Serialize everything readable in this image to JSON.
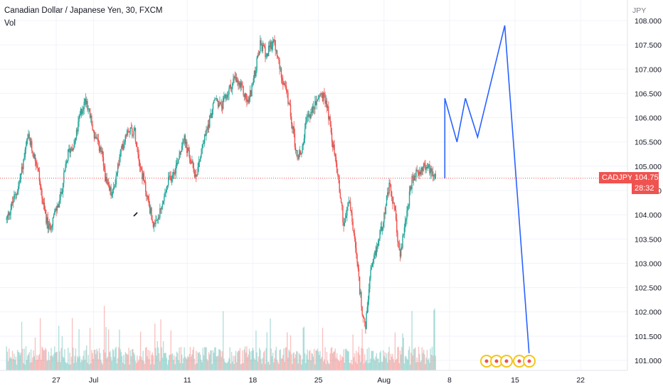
{
  "header": {
    "title": "Canadian Dollar / Japanese Yen, 30, FXCM",
    "volume_label": "Vol"
  },
  "price_axis": {
    "currency": "JPY"
  },
  "last_price": {
    "symbol": "CADJPY",
    "price": "104.755",
    "countdown": "28:32"
  },
  "colors": {
    "up": "#26a69a",
    "down": "#ef5350",
    "projection": "#2962ff",
    "price_line": "#ef5350",
    "event_marker": "#f5c518"
  },
  "chart_data": {
    "type": "candlestick",
    "title": "Canadian Dollar / Japanese Yen, 30, FXCM",
    "ylabel": "JPY",
    "ylim": [
      100.85,
      108.3
    ],
    "ytick_labels": [
      "101.000",
      "101.500",
      "102.000",
      "102.500",
      "103.000",
      "103.500",
      "104.000",
      "104.500",
      "105.000",
      "105.500",
      "106.000",
      "106.500",
      "107.000",
      "107.500",
      "108.000"
    ],
    "yticks": [
      101.0,
      101.5,
      102.0,
      102.5,
      103.0,
      103.5,
      104.0,
      104.5,
      105.0,
      105.5,
      106.0,
      106.5,
      107.0,
      107.5,
      108.0
    ],
    "x_labels": [
      {
        "text": "27",
        "day": 27
      },
      {
        "text": "Jul",
        "day": 31
      },
      {
        "text": "11",
        "day": 41
      },
      {
        "text": "18",
        "day": 48
      },
      {
        "text": "25",
        "day": 55
      },
      {
        "text": "Aug",
        "day": 62
      },
      {
        "text": "8",
        "day": 69
      },
      {
        "text": "15",
        "day": 76
      },
      {
        "text": "22",
        "day": 83
      }
    ],
    "price_path": [
      [
        21.7,
        103.9
      ],
      [
        23.0,
        104.6
      ],
      [
        24.0,
        105.6
      ],
      [
        25.0,
        105.0
      ],
      [
        25.6,
        104.2
      ],
      [
        26.2,
        103.7
      ],
      [
        27.4,
        104.3
      ],
      [
        28.3,
        105.3
      ],
      [
        29.0,
        105.5
      ],
      [
        29.6,
        106.1
      ],
      [
        30.2,
        106.4
      ],
      [
        31.1,
        105.6
      ],
      [
        31.8,
        105.3
      ],
      [
        32.4,
        104.6
      ],
      [
        33.0,
        104.4
      ],
      [
        33.8,
        105.2
      ],
      [
        34.6,
        105.8
      ],
      [
        35.4,
        105.7
      ],
      [
        36.0,
        105.0
      ],
      [
        36.8,
        104.3
      ],
      [
        37.5,
        103.7
      ],
      [
        38.2,
        104.1
      ],
      [
        39.0,
        104.7
      ],
      [
        39.8,
        105.0
      ],
      [
        40.6,
        105.6
      ],
      [
        41.2,
        105.2
      ],
      [
        41.9,
        104.8
      ],
      [
        42.6,
        105.4
      ],
      [
        43.3,
        105.9
      ],
      [
        44.0,
        106.4
      ],
      [
        44.6,
        106.2
      ],
      [
        45.3,
        106.5
      ],
      [
        46.0,
        106.8
      ],
      [
        46.8,
        106.6
      ],
      [
        47.5,
        106.3
      ],
      [
        48.2,
        106.9
      ],
      [
        48.8,
        107.5
      ],
      [
        49.5,
        107.3
      ],
      [
        50.2,
        107.6
      ],
      [
        50.9,
        107.0
      ],
      [
        51.5,
        106.6
      ],
      [
        52.1,
        106.0
      ],
      [
        52.7,
        105.2
      ],
      [
        53.2,
        105.3
      ],
      [
        53.8,
        106.0
      ],
      [
        54.5,
        106.2
      ],
      [
        55.2,
        106.5
      ],
      [
        55.9,
        106.3
      ],
      [
        56.5,
        105.5
      ],
      [
        57.1,
        104.8
      ],
      [
        57.7,
        103.8
      ],
      [
        58.3,
        104.3
      ],
      [
        58.9,
        103.4
      ],
      [
        59.5,
        102.3
      ],
      [
        60.0,
        101.6
      ],
      [
        60.5,
        102.7
      ],
      [
        61.2,
        103.3
      ],
      [
        61.9,
        103.9
      ],
      [
        62.6,
        104.6
      ],
      [
        63.2,
        104.0
      ],
      [
        63.7,
        103.1
      ],
      [
        64.3,
        103.9
      ],
      [
        65.0,
        104.7
      ],
      [
        65.7,
        104.9
      ],
      [
        66.4,
        105.0
      ],
      [
        67.2,
        104.9
      ],
      [
        67.6,
        104.8
      ]
    ],
    "volume_hint": {
      "ylim": [
        0,
        1
      ]
    },
    "projection": [
      [
        68.5,
        104.75
      ],
      [
        68.5,
        106.4
      ],
      [
        69.8,
        105.5
      ],
      [
        70.7,
        106.4
      ],
      [
        72.0,
        105.6
      ],
      [
        74.9,
        107.9
      ],
      [
        77.5,
        101.15
      ]
    ],
    "last_price_value": 104.755,
    "event_markers": 5
  }
}
